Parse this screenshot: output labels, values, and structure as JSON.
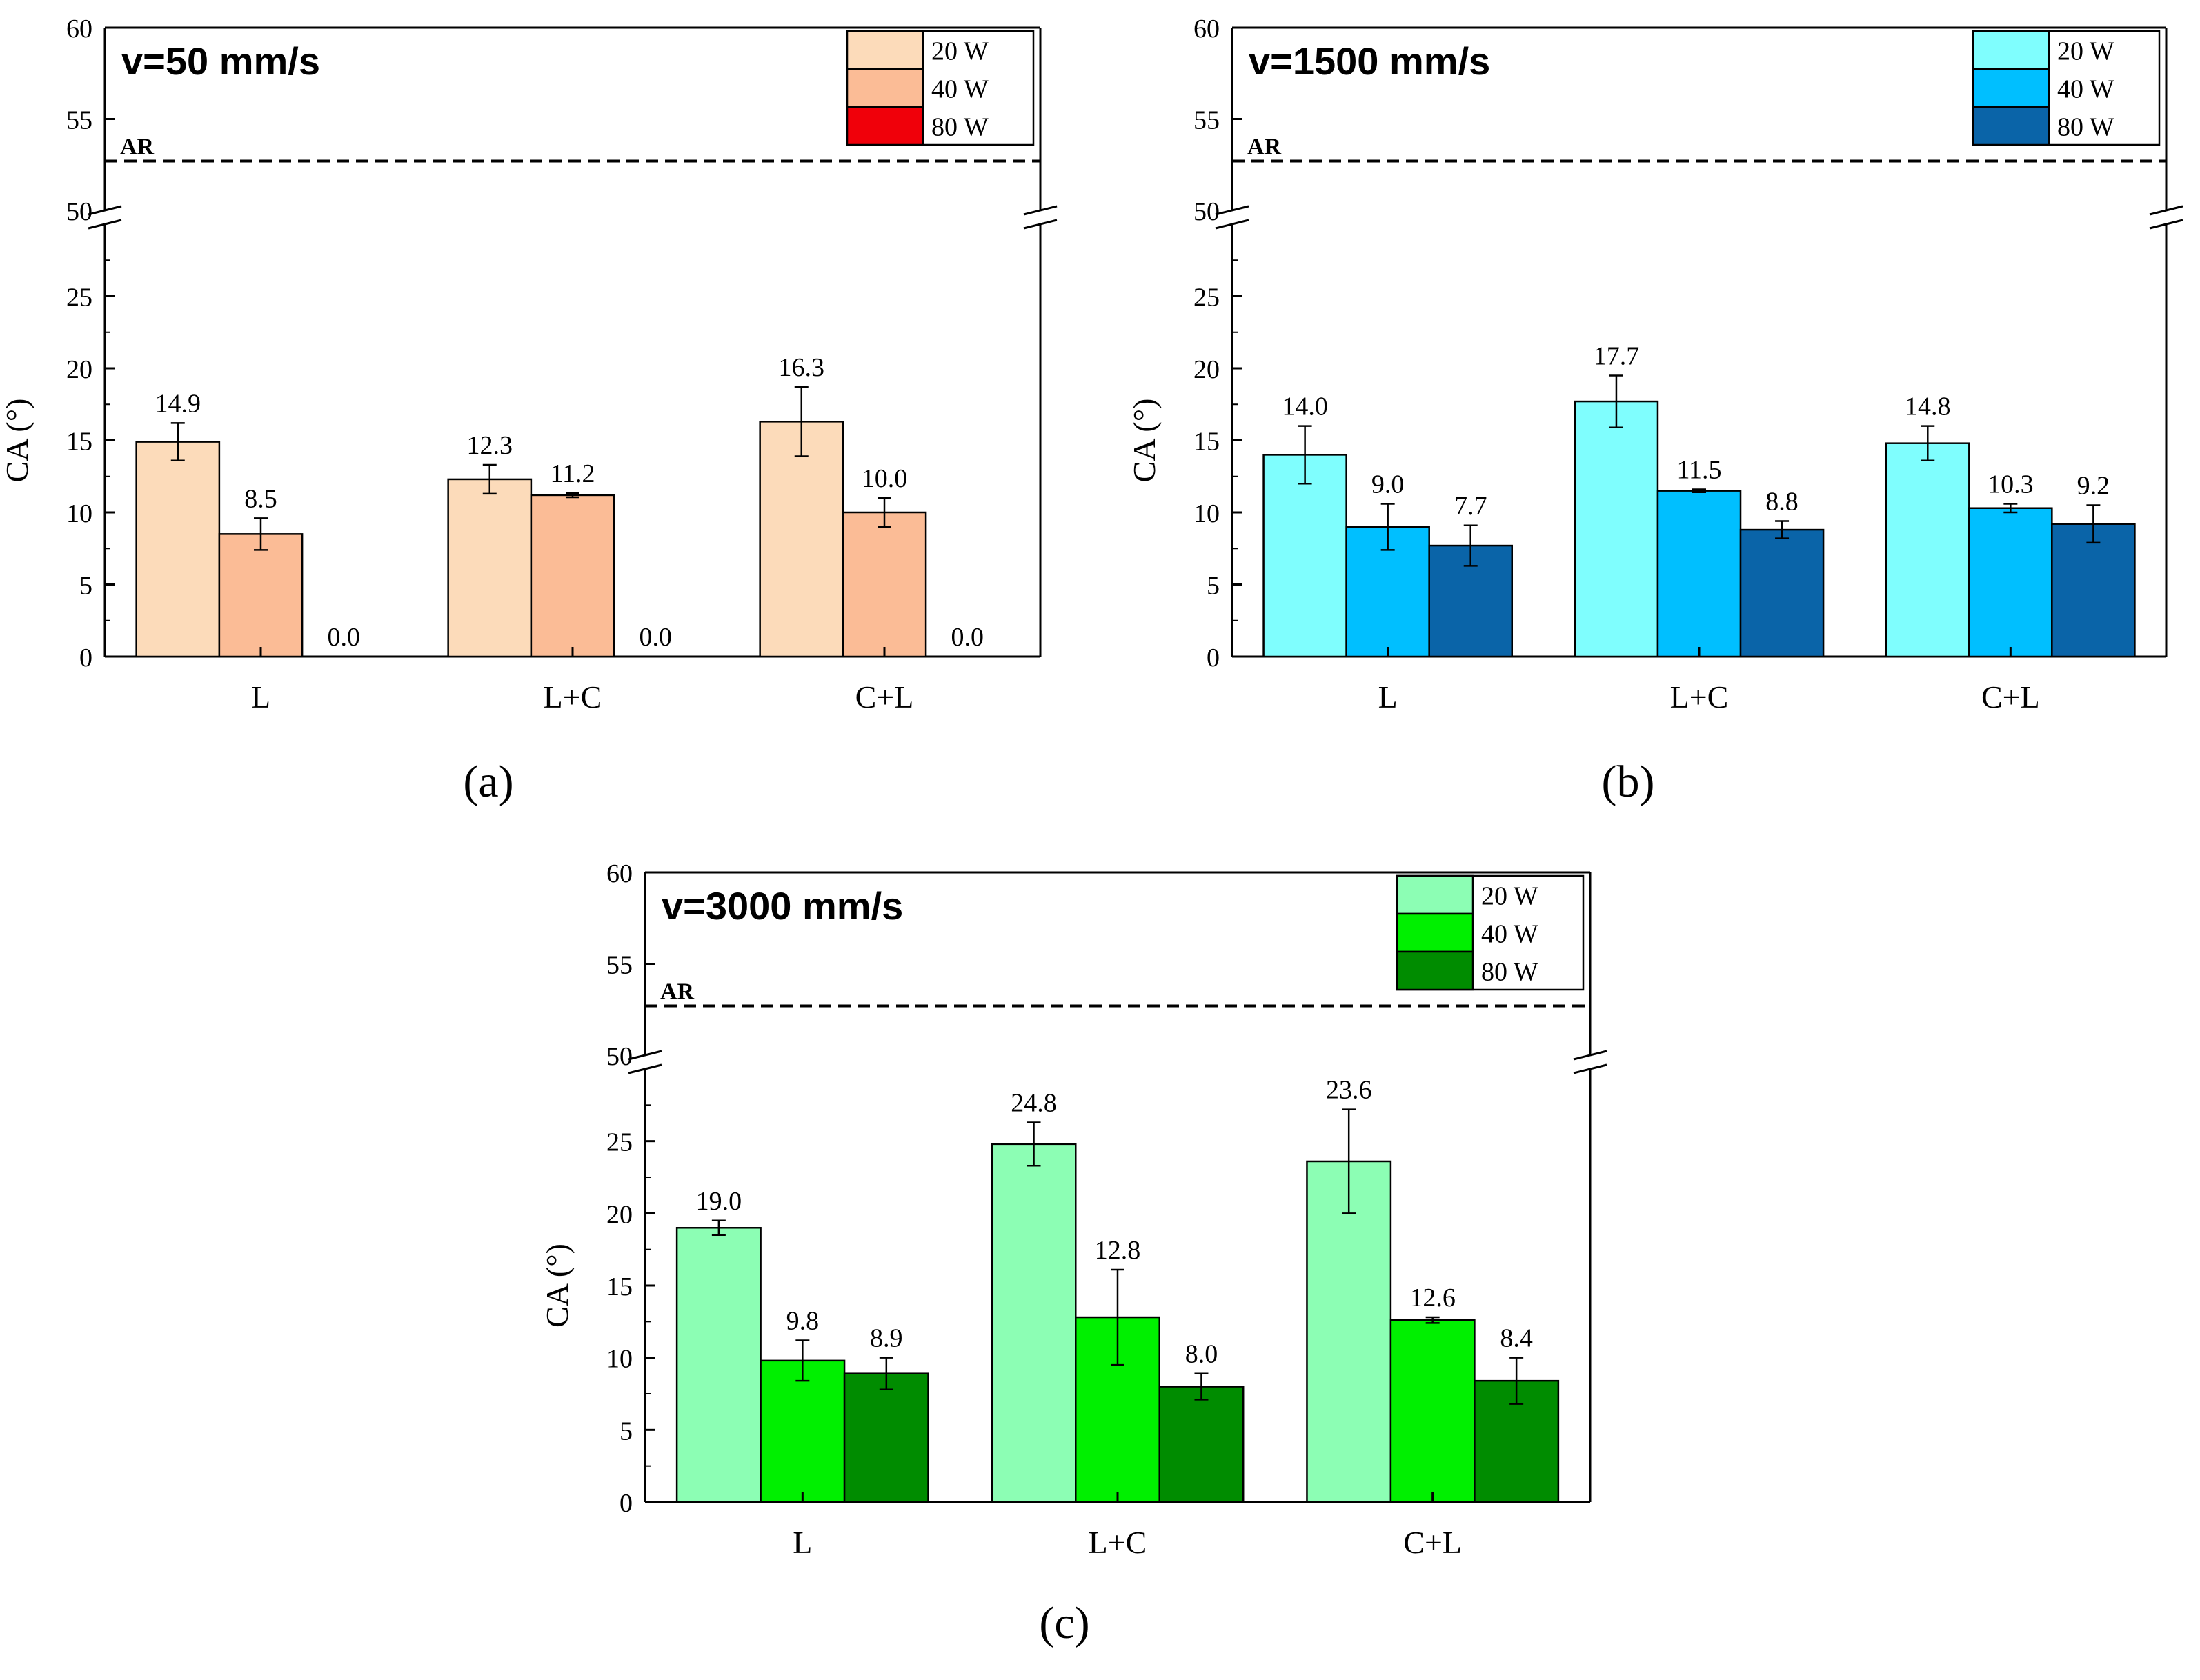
{
  "chart_data": [
    {
      "type": "bar",
      "panel_label": "(a)",
      "title": "v=50 mm/s",
      "xlabel": "",
      "ylabel": "CA (°)",
      "categories": [
        "L",
        "L+C",
        "C+L"
      ],
      "series": [
        {
          "name": "20 W",
          "color": "#FCDBBA",
          "values": [
            14.9,
            12.3,
            16.3
          ],
          "errors": [
            1.3,
            1.0,
            2.4
          ],
          "labels": [
            "14.9",
            "12.3",
            "16.3"
          ]
        },
        {
          "name": "40 W",
          "color": "#FBBC96",
          "values": [
            8.5,
            11.2,
            10.0
          ],
          "errors": [
            1.1,
            0.15,
            1.0
          ],
          "labels": [
            "8.5",
            "11.2",
            "10.0"
          ]
        },
        {
          "name": "80 W",
          "color": "#F0000A",
          "values": [
            0.0,
            0.0,
            0.0
          ],
          "errors": [
            0,
            0,
            0
          ],
          "labels": [
            "0.0",
            "0.0",
            "0.0"
          ]
        }
      ],
      "reference_line": {
        "label": "AR",
        "value": 52.7,
        "style": "dashed"
      },
      "y_axis_break": [
        30,
        50
      ],
      "ylim_lower": [
        0,
        30
      ],
      "ylim_upper": [
        50,
        60
      ],
      "yticks_lower": [
        "0",
        "5",
        "10",
        "15",
        "20",
        "25"
      ],
      "yticks_upper": [
        "50",
        "55",
        "60"
      ],
      "legend_position": "top-right",
      "grid": false
    },
    {
      "type": "bar",
      "panel_label": "(b)",
      "title": "v=1500 mm/s",
      "xlabel": "",
      "ylabel": "CA (°)",
      "categories": [
        "L",
        "L+C",
        "C+L"
      ],
      "series": [
        {
          "name": "20 W",
          "color": "#7FFEFE",
          "values": [
            14.0,
            17.7,
            14.8
          ],
          "errors": [
            2.0,
            1.8,
            1.2
          ],
          "labels": [
            "14.0",
            "17.7",
            "14.8"
          ]
        },
        {
          "name": "40 W",
          "color": "#00BFFF",
          "values": [
            9.0,
            11.5,
            10.3
          ],
          "errors": [
            1.6,
            0.1,
            0.3
          ],
          "labels": [
            "9.0",
            "11.5",
            "10.3"
          ]
        },
        {
          "name": "80 W",
          "color": "#0A64A8",
          "values": [
            7.7,
            8.8,
            9.2
          ],
          "errors": [
            1.4,
            0.6,
            1.3
          ],
          "labels": [
            "7.7",
            "8.8",
            "9.2"
          ]
        }
      ],
      "reference_line": {
        "label": "AR",
        "value": 52.7,
        "style": "dashed"
      },
      "y_axis_break": [
        30,
        50
      ],
      "ylim_lower": [
        0,
        30
      ],
      "ylim_upper": [
        50,
        60
      ],
      "yticks_lower": [
        "0",
        "5",
        "10",
        "15",
        "20",
        "25"
      ],
      "yticks_upper": [
        "50",
        "55",
        "60"
      ],
      "legend_position": "top-right",
      "grid": false
    },
    {
      "type": "bar",
      "panel_label": "(c)",
      "title": "v=3000 mm/s",
      "xlabel": "",
      "ylabel": "CA (°)",
      "categories": [
        "L",
        "L+C",
        "C+L"
      ],
      "series": [
        {
          "name": "20 W",
          "color": "#8CFEB4",
          "values": [
            19.0,
            24.8,
            23.6
          ],
          "errors": [
            0.5,
            1.5,
            3.6
          ],
          "labels": [
            "19.0",
            "24.8",
            "23.6"
          ]
        },
        {
          "name": "40 W",
          "color": "#00F000",
          "values": [
            9.8,
            12.8,
            12.6
          ],
          "errors": [
            1.4,
            3.3,
            0.2
          ],
          "labels": [
            "9.8",
            "12.8",
            "12.6"
          ]
        },
        {
          "name": "80 W",
          "color": "#008C00",
          "values": [
            8.9,
            8.0,
            8.4
          ],
          "errors": [
            1.1,
            0.9,
            1.6
          ],
          "labels": [
            "8.9",
            "8.0",
            "8.4"
          ]
        }
      ],
      "reference_line": {
        "label": "AR",
        "value": 52.7,
        "style": "dashed"
      },
      "y_axis_break": [
        30,
        50
      ],
      "ylim_lower": [
        0,
        30
      ],
      "ylim_upper": [
        50,
        60
      ],
      "yticks_lower": [
        "0",
        "5",
        "10",
        "15",
        "20",
        "25"
      ],
      "yticks_upper": [
        "50",
        "55",
        "60"
      ],
      "legend_position": "top-right",
      "grid": false
    }
  ]
}
